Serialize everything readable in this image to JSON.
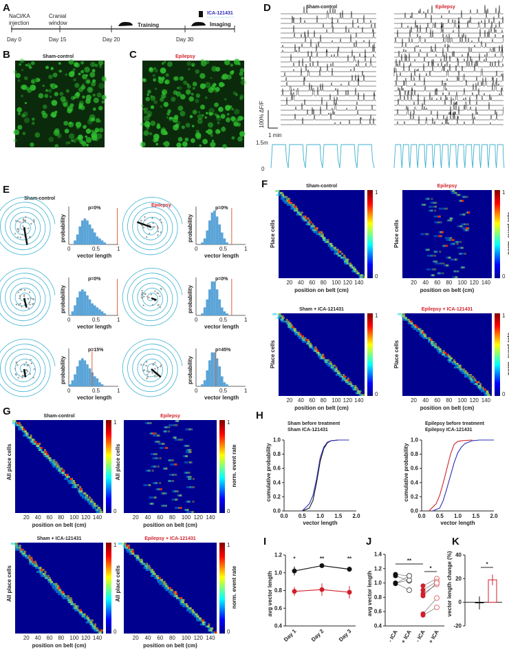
{
  "panels": {
    "A": "A",
    "B": "B",
    "C": "C",
    "D": "D",
    "E": "E",
    "F": "F",
    "G": "G",
    "H": "H",
    "I": "I",
    "J": "J",
    "K": "K"
  },
  "timeline": {
    "events": [
      {
        "l1": "NaCl/KA",
        "l2": "injection",
        "day": "Day 0"
      },
      {
        "l1": "Cranial",
        "l2": "window",
        "day": "Day 15"
      },
      {
        "l1": "",
        "l2": "",
        "day": "Day 20"
      },
      {
        "l1": "",
        "l2": "",
        "day": "Day 30"
      }
    ],
    "training": "Training",
    "drug": "ICA-121431",
    "imaging": "Imaging"
  },
  "groups": {
    "sham": "Sham-control",
    "epi": "Epilepsy",
    "sham_ica": "Sham + ICA-121431",
    "epi_ica": "Epilepsy + ICA-121431"
  },
  "D": {
    "scale_y": "100% ΔF/F",
    "scale_x": "1 min",
    "vel_top": "1.5m",
    "vel_bottom": "0"
  },
  "E": {
    "p_labels": [
      "p=0%",
      "p=0%",
      "p=0%",
      "p=0%",
      "p=15%",
      "p=45%"
    ],
    "ylabel": "probability",
    "xlabel": "vector length",
    "ticks": [
      "0",
      "0.5",
      "1"
    ]
  },
  "F": {
    "ylabel": "Place cells",
    "xlabel": "position on belt (cm)",
    "cbar_label": "norm. event rate",
    "cbar_max": "1",
    "cbar_min": "0",
    "xticks": [
      "20",
      "40",
      "60",
      "80",
      "100",
      "120",
      "140"
    ]
  },
  "G": {
    "ylabel": "All place cells"
  },
  "colors": {
    "red": "#d0202a",
    "blue": "#2b2bb8",
    "cyan": "#3ab0d0",
    "green": "#2fc22f",
    "hist": "#5aa4d8"
  },
  "chart_data": [
    {
      "id": "H-left",
      "type": "line",
      "legend": [
        "Sham before treatment",
        "Sham ICA-121431"
      ],
      "xlabel": "vector length",
      "ylabel": "cumulative probability",
      "xlim": [
        0,
        2
      ],
      "ylim": [
        0,
        1
      ],
      "xticks": [
        "0.0",
        "0.5",
        "1.0",
        "1.5",
        "2.0"
      ],
      "yticks": [
        "0.0",
        "0.2",
        "0.4",
        "0.6",
        "0.8",
        "1.0"
      ],
      "series": [
        {
          "name": "Sham before treatment",
          "color": "#111111",
          "x": [
            0.5,
            0.6,
            0.7,
            0.8,
            0.9,
            1.0,
            1.1,
            1.2,
            1.3,
            1.5,
            1.8
          ],
          "y": [
            0,
            0.02,
            0.04,
            0.15,
            0.4,
            0.7,
            0.88,
            0.96,
            0.99,
            1,
            1
          ]
        },
        {
          "name": "Sham ICA-121431",
          "color": "#2b2bb8",
          "x": [
            0.5,
            0.6,
            0.7,
            0.8,
            0.9,
            1.0,
            1.1,
            1.2,
            1.3,
            1.5,
            1.8
          ],
          "y": [
            0,
            0.05,
            0.1,
            0.22,
            0.45,
            0.75,
            0.9,
            0.97,
            0.99,
            1,
            1
          ]
        }
      ]
    },
    {
      "id": "H-right",
      "type": "line",
      "legend": [
        "Epilepsy before treatment",
        "Epilepsy ICA-121431"
      ],
      "xlabel": "vector length",
      "ylabel": "cumulative probability",
      "xlim": [
        0,
        2
      ],
      "ylim": [
        0,
        1
      ],
      "xticks": [
        "0.0",
        "0.5",
        "1.0",
        "1.5",
        "2.0"
      ],
      "yticks": [
        "0.0",
        "0.2",
        "0.4",
        "0.6",
        "0.8",
        "1.0"
      ],
      "series": [
        {
          "name": "Epilepsy before treatment",
          "color": "#d0202a",
          "x": [
            0.2,
            0.4,
            0.5,
            0.6,
            0.7,
            0.8,
            0.9,
            1.0,
            1.1,
            1.4
          ],
          "y": [
            0,
            0.1,
            0.22,
            0.4,
            0.6,
            0.8,
            0.94,
            0.98,
            0.99,
            1
          ],
          "_": ""
        },
        {
          "name": "Epilepsy ICA-121431",
          "color": "#2b2bb8",
          "x": [
            0.3,
            0.5,
            0.6,
            0.7,
            0.8,
            0.9,
            1.0,
            1.1,
            1.2,
            1.4,
            1.6,
            2.0
          ],
          "y": [
            0,
            0.04,
            0.15,
            0.32,
            0.5,
            0.68,
            0.82,
            0.9,
            0.95,
            0.99,
            1,
            1
          ]
        }
      ]
    },
    {
      "id": "I",
      "type": "line",
      "ylabel": "avg vector length",
      "ylim": [
        0.4,
        1.2
      ],
      "yticks": [
        "0.4",
        "0.6",
        "0.8",
        "1.0",
        "1.2"
      ],
      "categories": [
        "Day 1",
        "Day 2",
        "Day 3"
      ],
      "significance": [
        "*",
        "**",
        "**"
      ],
      "series": [
        {
          "name": "Sham",
          "color": "#111111",
          "values": [
            1.02,
            1.08,
            1.04
          ],
          "err": [
            0.05,
            0.02,
            0.03
          ]
        },
        {
          "name": "Epilepsy",
          "color": "#d0202a",
          "values": [
            0.79,
            0.81,
            0.78
          ],
          "err": [
            0.05,
            0.07,
            0.07
          ]
        }
      ]
    },
    {
      "id": "J",
      "type": "scatter",
      "ylabel": "avg vector length",
      "ylim": [
        0.4,
        1.4
      ],
      "yticks": [
        "0.4",
        "0.6",
        "0.8",
        "1.0",
        "1.2",
        "1.4"
      ],
      "categories": [
        "- ICA",
        "+ ICA",
        "- ICA",
        "+ ICA"
      ],
      "significance": [
        "**",
        "*"
      ],
      "pairs": [
        {
          "group": "Sham",
          "before": [
            1.12,
            1.1,
            1.0,
            1.0,
            0.99
          ],
          "after": [
            1.1,
            1.03,
            1.04,
            0.9,
            1.1
          ]
        },
        {
          "group": "Epilepsy",
          "before": [
            0.96,
            0.9,
            0.85,
            0.82,
            0.57,
            0.55
          ],
          "after": [
            1.06,
            1.02,
            0.98,
            1.0,
            0.79,
            0.66
          ]
        }
      ]
    },
    {
      "id": "K",
      "type": "bar",
      "ylabel": "vector length change (%)",
      "ylim": [
        -20,
        40
      ],
      "yticks": [
        "-20",
        "0",
        "20",
        "40"
      ],
      "categories": [
        "Sham",
        "Epilepsy"
      ],
      "values": [
        -0.5,
        19
      ],
      "err": [
        5.5,
        4.5
      ],
      "significance": "*"
    }
  ]
}
